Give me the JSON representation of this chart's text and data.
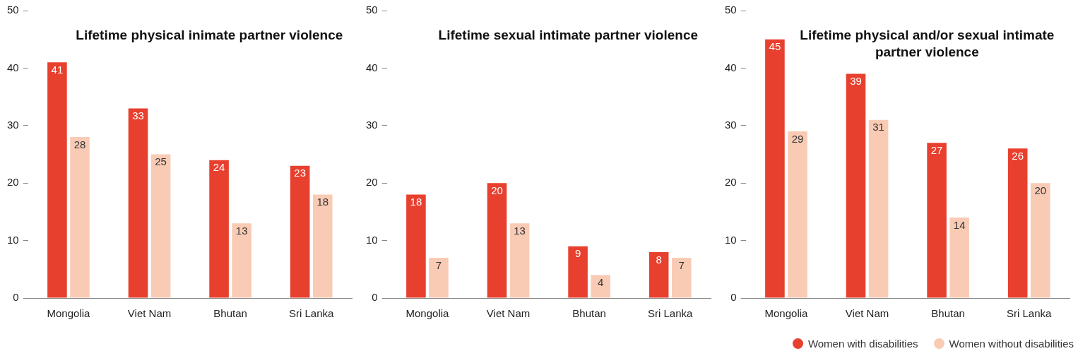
{
  "chart_data": [
    {
      "type": "bar",
      "title": "Lifetime physical inimate partner violence",
      "categories": [
        "Mongolia",
        "Viet Nam",
        "Bhutan",
        "Sri Lanka"
      ],
      "series": [
        {
          "color": "#e8402e",
          "values": [
            41,
            33,
            24,
            23
          ]
        },
        {
          "color": "#f9cbb5",
          "values": [
            28,
            25,
            13,
            18
          ]
        }
      ],
      "ylim": [
        0,
        50
      ],
      "yticks": [
        0,
        10,
        20,
        30,
        40,
        50
      ],
      "grid": false,
      "data_labels": true
    },
    {
      "type": "bar",
      "title": "Lifetime sexual intimate partner violence",
      "categories": [
        "Mongolia",
        "Viet Nam",
        "Bhutan",
        "Sri Lanka"
      ],
      "series": [
        {
          "color": "#e8402e",
          "values": [
            18,
            20,
            9,
            8
          ]
        },
        {
          "color": "#f9cbb5",
          "values": [
            7,
            13,
            4,
            7
          ]
        }
      ],
      "ylim": [
        0,
        50
      ],
      "yticks": [
        0,
        10,
        20,
        30,
        40,
        50
      ],
      "grid": false,
      "data_labels": true
    },
    {
      "type": "bar",
      "title": "Lifetime physical and/or sexual intimate partner violence",
      "categories": [
        "Mongolia",
        "Viet Nam",
        "Bhutan",
        "Sri Lanka"
      ],
      "series": [
        {
          "name": "Women with disabilities",
          "color": "#e8402e",
          "values": [
            45,
            39,
            27,
            26
          ]
        },
        {
          "name": "Women without disabilities",
          "color": "#f9cbb5",
          "values": [
            29,
            31,
            14,
            20
          ]
        }
      ],
      "ylim": [
        0,
        50
      ],
      "yticks": [
        0,
        10,
        20,
        30,
        40,
        50
      ],
      "grid": false,
      "data_labels": true,
      "legend": "bottom right"
    }
  ]
}
